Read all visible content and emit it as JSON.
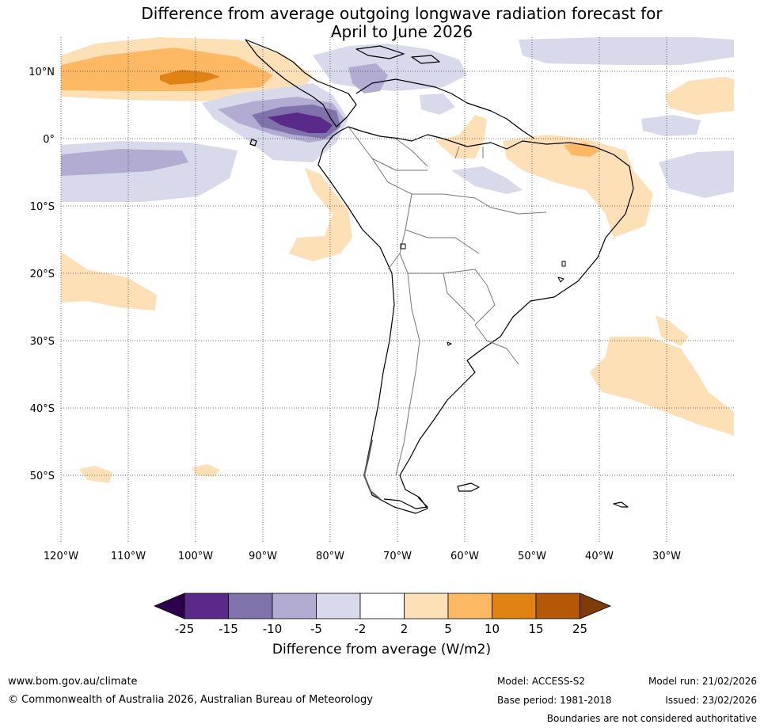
{
  "title": {
    "line1": "Difference from average outgoing longwave radiation forecast for",
    "line2": "April to June 2026"
  },
  "map": {
    "lat_labels": [
      "10°N",
      "0°",
      "10°S",
      "20°S",
      "30°S",
      "40°S",
      "50°S"
    ],
    "lon_labels": [
      "120°W",
      "110°W",
      "100°W",
      "90°W",
      "80°W",
      "70°W",
      "60°W",
      "50°W",
      "40°W",
      "30°W"
    ],
    "lat_range": [
      -60,
      15
    ],
    "lon_range": [
      -120,
      -20
    ]
  },
  "colorbar": {
    "ticks": [
      "-25",
      "-15",
      "-10",
      "-5",
      "-2",
      "2",
      "5",
      "10",
      "15",
      "25"
    ],
    "title": "Difference from average (W/m2)",
    "colors": [
      "#2d004b",
      "#5a2a8a",
      "#8073ac",
      "#b2abd2",
      "#d8daeb",
      "#ffffff",
      "#fee0b6",
      "#fdb863",
      "#e08214",
      "#b35806",
      "#7f3b08"
    ]
  },
  "footer": {
    "url": "www.bom.gov.au/climate",
    "copyright": "© Commonwealth of Australia 2026, Australian Bureau of Meteorology",
    "model": "Model: ACCESS-S2",
    "base_period": "Base period: 1981-2018",
    "model_run": "Model run: 21/02/2026",
    "issued": "Issued: 23/02/2026",
    "disclaimer": "Boundaries are not considered authoritative"
  }
}
